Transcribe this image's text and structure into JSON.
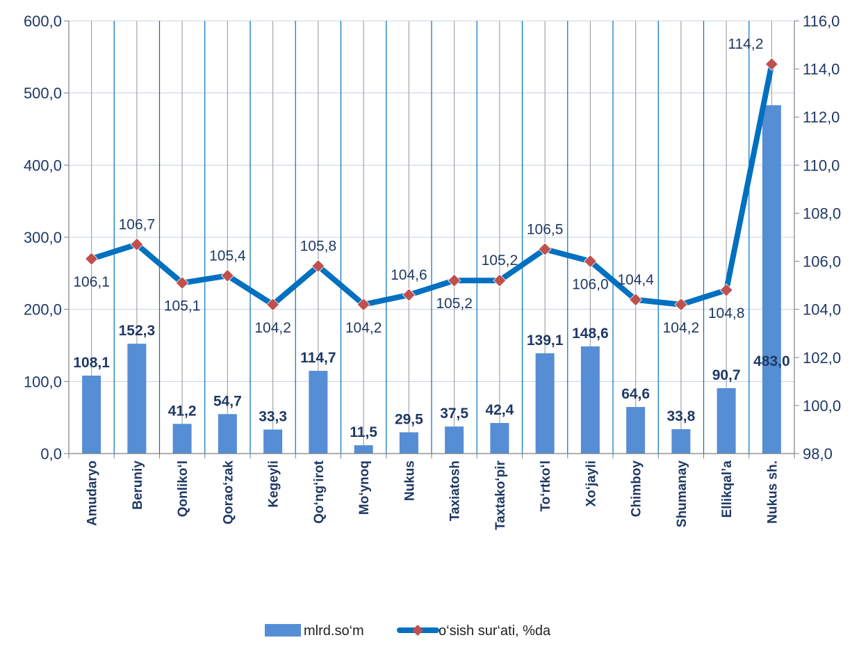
{
  "chart_data": {
    "type": "bar",
    "categories": [
      "Amudaryo",
      "Beruniy",
      "Qonliko‘l",
      "Qorao‘zak",
      "Kegeyli",
      "Qo‘ng‘irot",
      "Mo‘ynoq",
      "Nukus",
      "Taxiatosh",
      "Taxtako‘pir",
      "To‘rtko‘l",
      "Xo‘jayli",
      "Chimboy",
      "Shumanay",
      "Ellikqal’a",
      "Nukus sh."
    ],
    "series": [
      {
        "name": "mlrd.so‘m",
        "type": "bar",
        "axis": "left",
        "values": [
          108.1,
          152.3,
          41.2,
          54.7,
          33.3,
          114.7,
          11.5,
          29.5,
          37.5,
          42.4,
          139.1,
          148.6,
          64.6,
          33.8,
          90.7,
          483.0
        ],
        "labels": [
          "108,1",
          "152,3",
          "41,2",
          "54,7",
          "33,3",
          "114,7",
          "11,5",
          "29,5",
          "37,5",
          "42,4",
          "139,1",
          "148,6",
          "64,6",
          "33,8",
          "90,7",
          "483,0"
        ],
        "color": "#558ed5"
      },
      {
        "name": "o‘sish sur‘ati, %da",
        "type": "line",
        "axis": "right",
        "values": [
          106.1,
          106.7,
          105.1,
          105.4,
          104.2,
          105.8,
          104.2,
          104.6,
          105.2,
          105.2,
          106.5,
          106.0,
          104.4,
          104.2,
          104.8,
          114.2
        ],
        "labels": [
          "106,1",
          "106,7",
          "105,1",
          "105,4",
          "104,2",
          "105,8",
          "104,2",
          "104,6",
          "105,2",
          "105,2",
          "106,5",
          "106,0",
          "104,4",
          "104,2",
          "104,8",
          "114,2"
        ],
        "color": "#0070c0",
        "marker_color": "#c0504d"
      }
    ],
    "y_left": {
      "range": [
        0,
        600
      ],
      "ticks": [
        "0,0",
        "100,0",
        "200,0",
        "300,0",
        "400,0",
        "500,0",
        "600,0"
      ]
    },
    "y_right": {
      "range": [
        98,
        116
      ],
      "ticks": [
        "98,0",
        "100,0",
        "102,0",
        "104,0",
        "106,0",
        "108,0",
        "110,0",
        "112,0",
        "114,0",
        "116,0"
      ]
    },
    "grid": true,
    "legend_position": "bottom"
  }
}
